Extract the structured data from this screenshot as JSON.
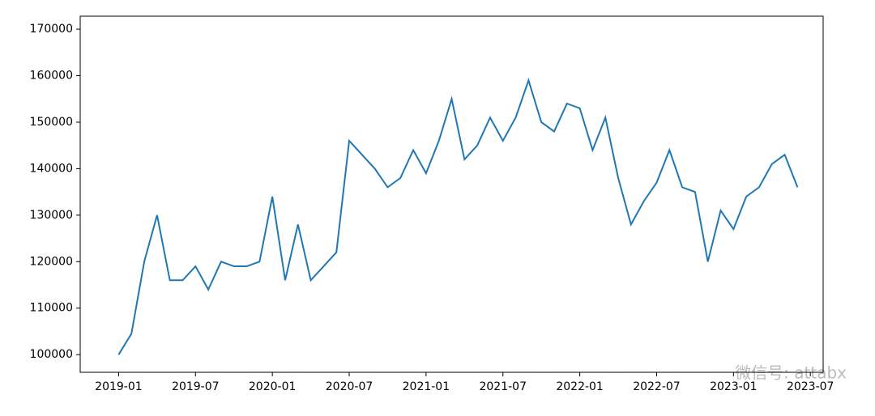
{
  "chart_data": {
    "type": "line",
    "x": [
      "2019-01",
      "2019-02",
      "2019-03",
      "2019-04",
      "2019-05",
      "2019-06",
      "2019-07",
      "2019-08",
      "2019-09",
      "2019-10",
      "2019-11",
      "2019-12",
      "2020-01",
      "2020-02",
      "2020-03",
      "2020-04",
      "2020-05",
      "2020-06",
      "2020-07",
      "2020-08",
      "2020-09",
      "2020-10",
      "2020-11",
      "2020-12",
      "2021-01",
      "2021-02",
      "2021-03",
      "2021-04",
      "2021-05",
      "2021-06",
      "2021-07",
      "2021-08",
      "2021-09",
      "2021-10",
      "2021-11",
      "2021-12",
      "2022-01",
      "2022-02",
      "2022-03",
      "2022-04",
      "2022-05",
      "2022-06",
      "2022-07",
      "2022-08",
      "2022-09",
      "2022-10",
      "2022-11",
      "2022-12",
      "2023-01",
      "2023-02",
      "2023-03",
      "2023-04",
      "2023-05",
      "2023-06"
    ],
    "series": [
      {
        "color": "#1f77b4",
        "values": [
          100000,
          104500,
          120000,
          130000,
          116000,
          116000,
          119000,
          114000,
          120000,
          119000,
          119000,
          120000,
          134000,
          116000,
          128000,
          116000,
          119000,
          122000,
          146000,
          143000,
          140000,
          136000,
          138000,
          144000,
          139000,
          146000,
          155000,
          142000,
          145000,
          151000,
          146000,
          151000,
          159000,
          150000,
          148000,
          154000,
          153000,
          144000,
          151000,
          138000,
          128000,
          133000,
          137000,
          144000,
          136000,
          135000,
          120000,
          131000,
          127000,
          134000,
          136000,
          141000,
          143000,
          136000
        ]
      }
    ],
    "xlim": [
      "2018-10",
      "2023-08"
    ],
    "xticks": [
      "2019-01",
      "2019-07",
      "2020-01",
      "2020-07",
      "2021-01",
      "2021-07",
      "2022-01",
      "2022-07",
      "2023-01",
      "2023-07"
    ],
    "ylim": [
      96200,
      172800
    ],
    "yticks": [
      100000,
      110000,
      120000,
      130000,
      140000,
      150000,
      160000,
      170000
    ],
    "watermark": "微信号: attabx"
  }
}
